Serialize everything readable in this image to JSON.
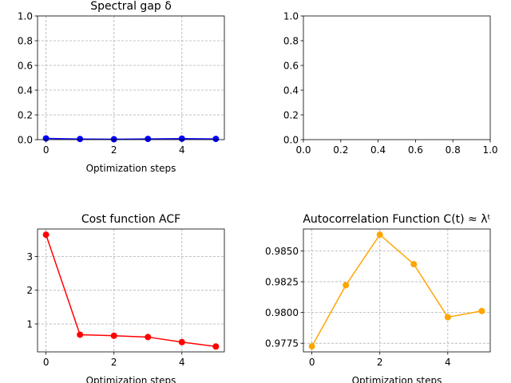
{
  "chart_data": [
    {
      "type": "line",
      "title": "Spectral gap δ",
      "xlabel": "Optimization steps",
      "ylabel": "",
      "x": [
        0,
        1,
        2,
        3,
        4,
        5
      ],
      "series": [
        {
          "values": [
            0.01,
            0.005,
            0.003,
            0.006,
            0.008,
            0.006
          ],
          "color": "#0000ff"
        }
      ],
      "xlim": [
        -0.25,
        5.25
      ],
      "ylim": [
        0,
        1
      ],
      "xticks": [
        0,
        2,
        4
      ],
      "yticks": [
        0.0,
        0.2,
        0.4,
        0.6,
        0.8,
        1.0
      ],
      "ytick_labels": [
        "0.0",
        "0.2",
        "0.4",
        "0.6",
        "0.8",
        "1.0"
      ],
      "grid": true
    },
    {
      "type": "line",
      "title": "",
      "xlabel": "",
      "ylabel": "",
      "x": [],
      "series": [],
      "xlim": [
        0,
        1
      ],
      "ylim": [
        0,
        1
      ],
      "xticks": [
        0.0,
        0.2,
        0.4,
        0.6,
        0.8,
        1.0
      ],
      "xtick_labels": [
        "0.0",
        "0.2",
        "0.4",
        "0.6",
        "0.8",
        "1.0"
      ],
      "yticks": [
        0.0,
        0.2,
        0.4,
        0.6,
        0.8,
        1.0
      ],
      "ytick_labels": [
        "0.0",
        "0.2",
        "0.4",
        "0.6",
        "0.8",
        "1.0"
      ],
      "grid": false
    },
    {
      "type": "line",
      "title": "Cost function ACF",
      "xlabel": "Optimization steps",
      "ylabel": "",
      "x": [
        0,
        1,
        2,
        3,
        4,
        5
      ],
      "series": [
        {
          "values": [
            3.65,
            0.68,
            0.65,
            0.61,
            0.46,
            0.33
          ],
          "color": "#ff0000"
        }
      ],
      "xlim": [
        -0.25,
        5.25
      ],
      "ylim": [
        0.17,
        3.82
      ],
      "xticks": [
        0,
        2,
        4
      ],
      "yticks": [
        1,
        2,
        3
      ],
      "ytick_labels": [
        "1",
        "2",
        "3"
      ],
      "grid": true
    },
    {
      "type": "line",
      "title": "Autocorrelation Function C(t) ≈ λᵗ",
      "xlabel": "Optimization steps",
      "ylabel": "",
      "x": [
        0,
        1,
        2,
        3,
        4,
        5
      ],
      "series": [
        {
          "values": [
            0.97725,
            0.98222,
            0.98632,
            0.98392,
            0.97962,
            0.98012
          ],
          "color": "#ffa500"
        }
      ],
      "xlim": [
        -0.25,
        5.25
      ],
      "ylim": [
        0.9768,
        0.98678
      ],
      "xticks": [
        0,
        2,
        4
      ],
      "yticks": [
        0.9775,
        0.98,
        0.9825,
        0.985
      ],
      "ytick_labels": [
        "0.9775",
        "0.9800",
        "0.9825",
        "0.9850"
      ],
      "grid": true
    }
  ]
}
